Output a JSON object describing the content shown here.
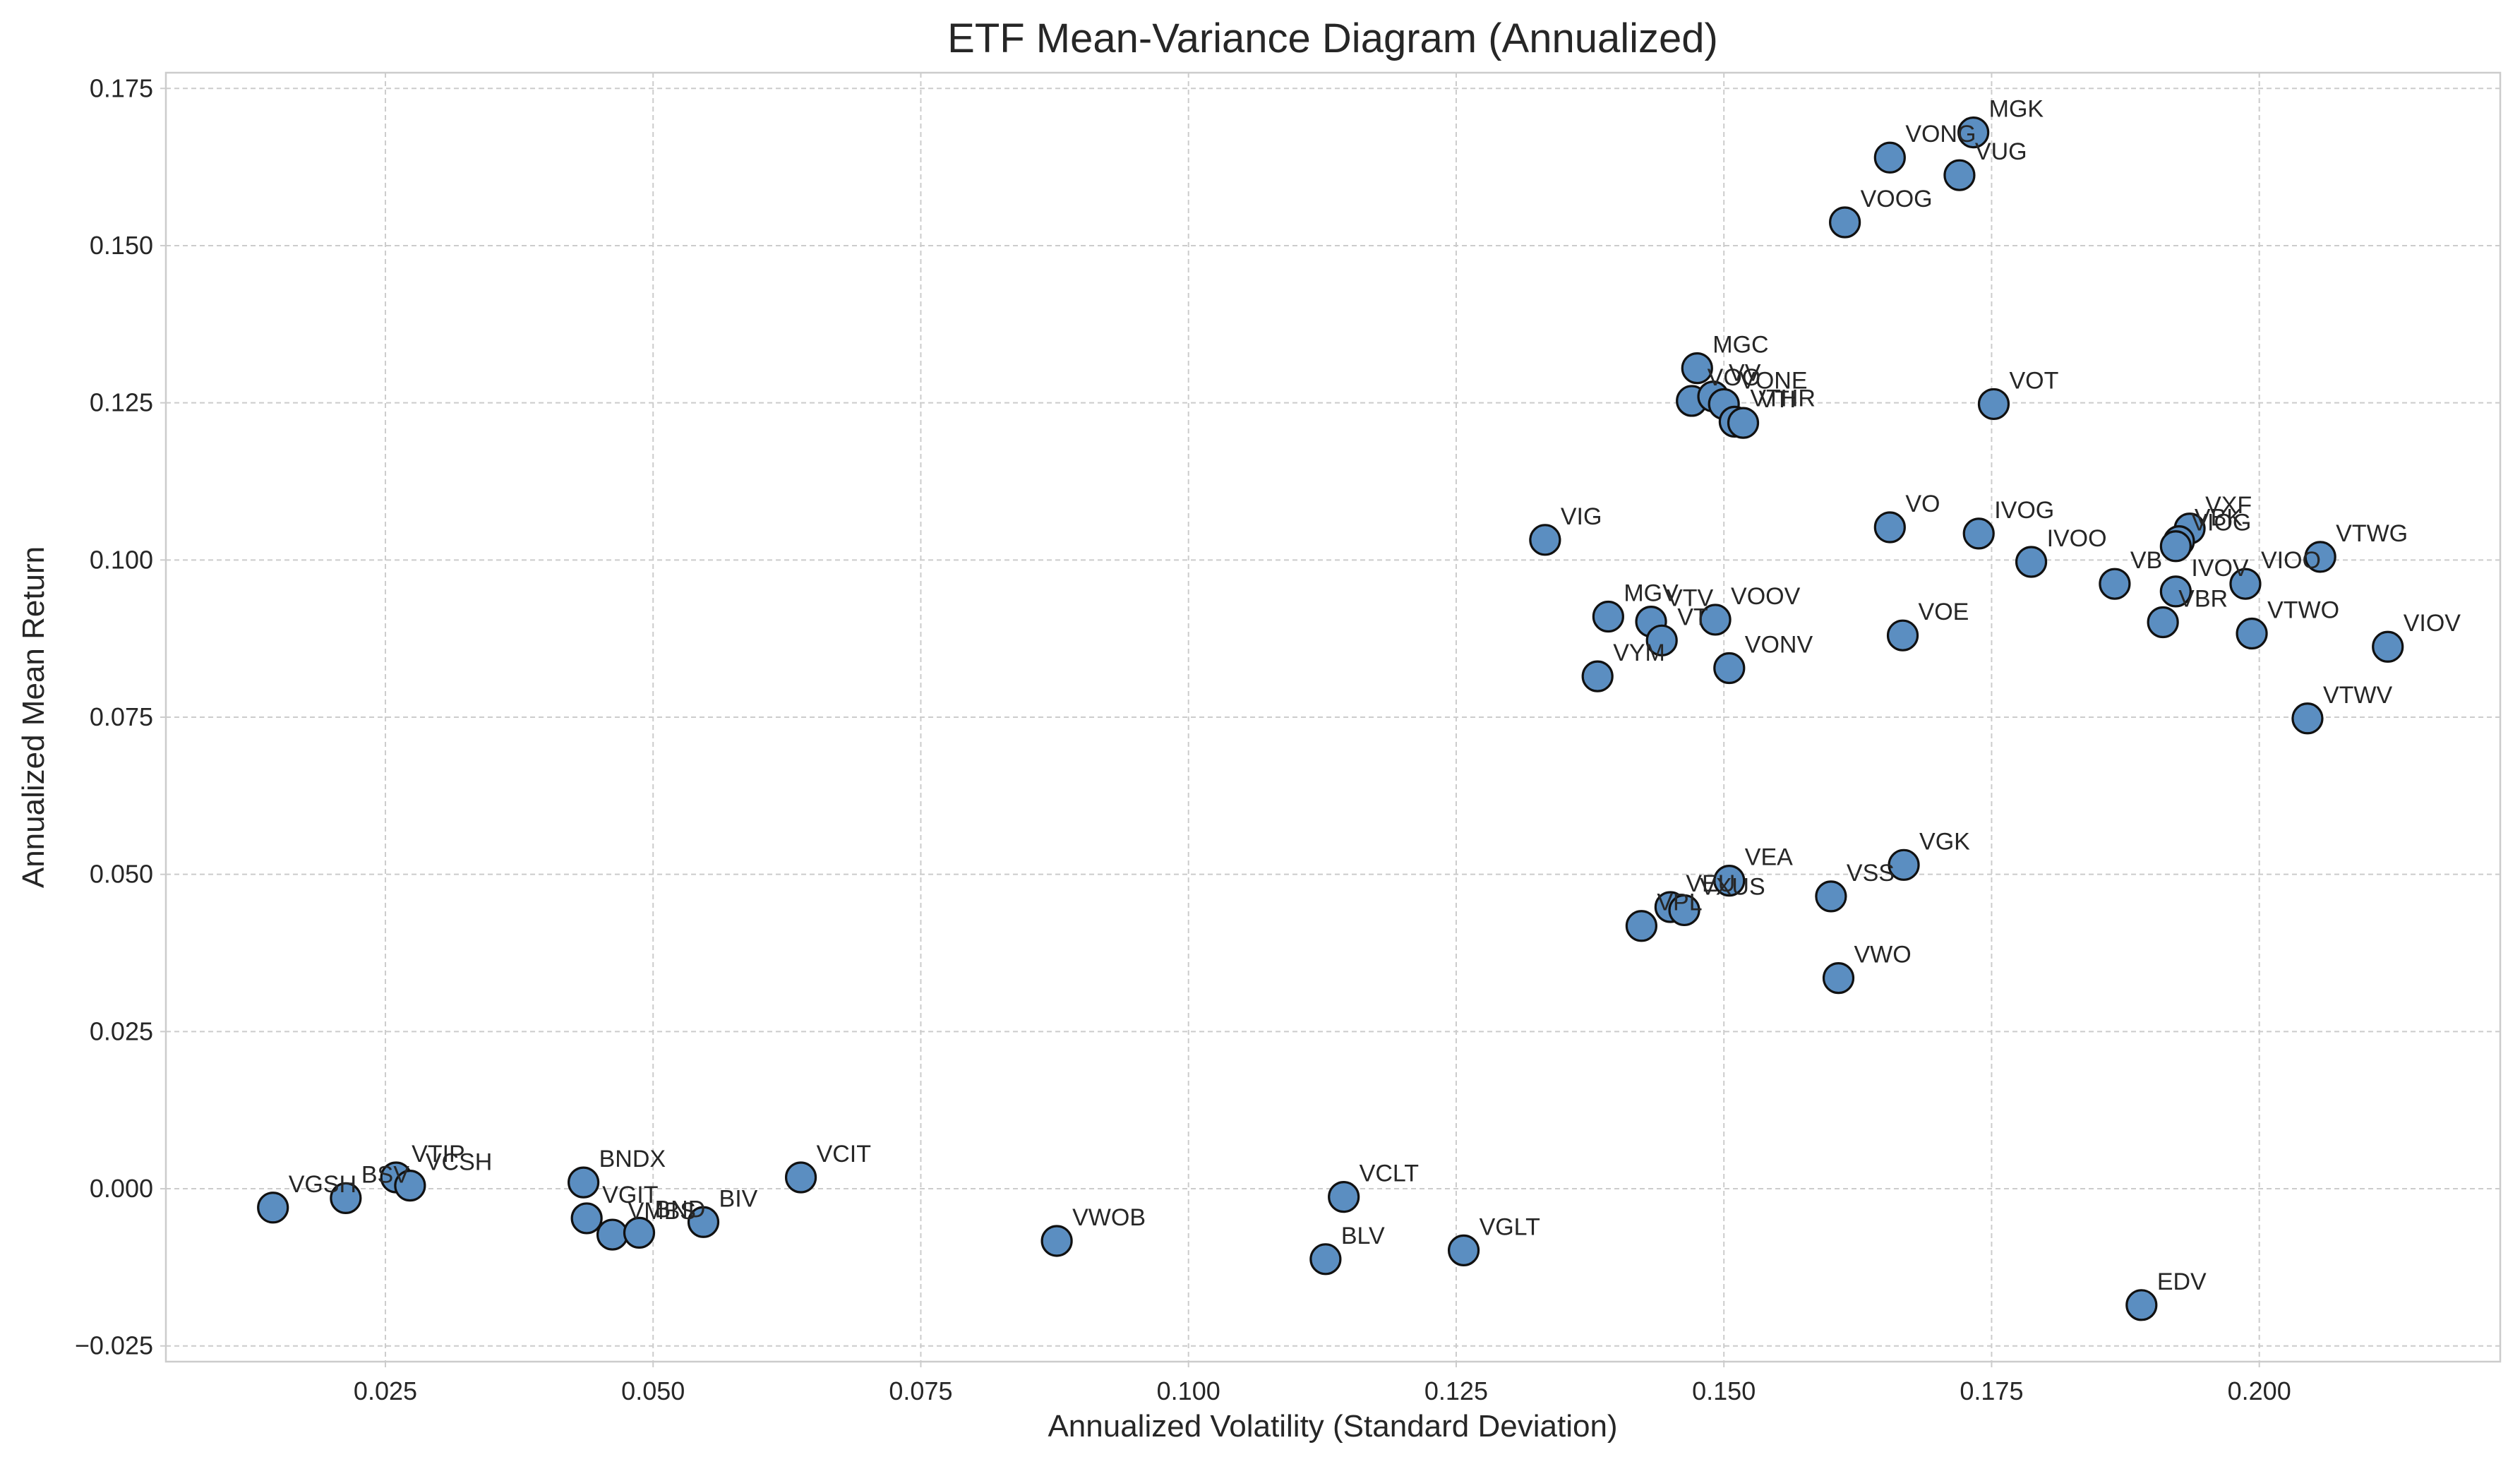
{
  "chart_data": {
    "type": "scatter",
    "title": "ETF Mean-Variance Diagram (Annualized)",
    "xlabel": "Annualized Volatility (Standard Deviation)",
    "ylabel": "Annualized Mean Return",
    "xlim": [
      0.0045,
      0.2225
    ],
    "ylim": [
      -0.0275,
      0.1775
    ],
    "xticks": [
      0.025,
      0.05,
      0.075,
      0.1,
      0.125,
      0.15,
      0.175,
      0.2
    ],
    "xtick_labels": [
      "0.025",
      "0.050",
      "0.075",
      "0.100",
      "0.125",
      "0.150",
      "0.175",
      "0.200"
    ],
    "yticks": [
      -0.025,
      0.0,
      0.025,
      0.05,
      0.075,
      0.1,
      0.125,
      0.15,
      0.175
    ],
    "ytick_labels": [
      "−0.025",
      "0.000",
      "0.025",
      "0.050",
      "0.075",
      "0.100",
      "0.125",
      "0.150",
      "0.175"
    ],
    "grid": true,
    "marker_color": "#5b8ec1",
    "points": [
      {
        "label": "MGK",
        "x": 0.1733,
        "y": 0.168
      },
      {
        "label": "VONG",
        "x": 0.1655,
        "y": 0.164
      },
      {
        "label": "VUG",
        "x": 0.172,
        "y": 0.1612
      },
      {
        "label": "VOOG",
        "x": 0.1613,
        "y": 0.1537
      },
      {
        "label": "MGC",
        "x": 0.1475,
        "y": 0.1305
      },
      {
        "label": "VOO",
        "x": 0.147,
        "y": 0.1253
      },
      {
        "label": "VV",
        "x": 0.149,
        "y": 0.126
      },
      {
        "label": "VONE",
        "x": 0.15,
        "y": 0.1248
      },
      {
        "label": "VTHR",
        "x": 0.151,
        "y": 0.122
      },
      {
        "label": "VTI",
        "x": 0.1518,
        "y": 0.1218
      },
      {
        "label": "VOT",
        "x": 0.1752,
        "y": 0.1248
      },
      {
        "label": "VIG",
        "x": 0.1333,
        "y": 0.1032
      },
      {
        "label": "VO",
        "x": 0.1655,
        "y": 0.1052
      },
      {
        "label": "IVOG",
        "x": 0.1738,
        "y": 0.1042
      },
      {
        "label": "IVOO",
        "x": 0.1787,
        "y": 0.0997
      },
      {
        "label": "VB",
        "x": 0.1865,
        "y": 0.0962
      },
      {
        "label": "VXF",
        "x": 0.1935,
        "y": 0.105
      },
      {
        "label": "VBK",
        "x": 0.1925,
        "y": 0.103
      },
      {
        "label": "VIOG",
        "x": 0.1922,
        "y": 0.1022
      },
      {
        "label": "IVOV",
        "x": 0.1922,
        "y": 0.095
      },
      {
        "label": "VBR",
        "x": 0.191,
        "y": 0.0901
      },
      {
        "label": "VIOO",
        "x": 0.1987,
        "y": 0.0962
      },
      {
        "label": "VTWG",
        "x": 0.2057,
        "y": 0.1005
      },
      {
        "label": "VTWO",
        "x": 0.1993,
        "y": 0.0883
      },
      {
        "label": "VIOV",
        "x": 0.212,
        "y": 0.0862
      },
      {
        "label": "VTWV",
        "x": 0.2045,
        "y": 0.0748
      },
      {
        "label": "MGV",
        "x": 0.1392,
        "y": 0.091
      },
      {
        "label": "VTV",
        "x": 0.1432,
        "y": 0.0902
      },
      {
        "label": "VT",
        "x": 0.1442,
        "y": 0.0872
      },
      {
        "label": "VOOV",
        "x": 0.1492,
        "y": 0.0905
      },
      {
        "label": "VYM",
        "x": 0.1382,
        "y": 0.0815
      },
      {
        "label": "VONV",
        "x": 0.1505,
        "y": 0.0828
      },
      {
        "label": "VOE",
        "x": 0.1667,
        "y": 0.088
      },
      {
        "label": "VGK",
        "x": 0.1668,
        "y": 0.0515
      },
      {
        "label": "VEA",
        "x": 0.1505,
        "y": 0.049
      },
      {
        "label": "VSS",
        "x": 0.16,
        "y": 0.0465
      },
      {
        "label": "VEU",
        "x": 0.145,
        "y": 0.0448
      },
      {
        "label": "VXUS",
        "x": 0.1463,
        "y": 0.0443
      },
      {
        "label": "VPL",
        "x": 0.1423,
        "y": 0.0418
      },
      {
        "label": "VWO",
        "x": 0.1607,
        "y": 0.0335
      },
      {
        "label": "VGSH",
        "x": 0.0145,
        "y": -0.003
      },
      {
        "label": "BSV",
        "x": 0.0213,
        "y": -0.0015
      },
      {
        "label": "VTIP",
        "x": 0.026,
        "y": 0.0018
      },
      {
        "label": "VCSH",
        "x": 0.0273,
        "y": 0.0005
      },
      {
        "label": "BNDX",
        "x": 0.0435,
        "y": 0.001
      },
      {
        "label": "VGIT",
        "x": 0.0438,
        "y": -0.0047
      },
      {
        "label": "VMBS",
        "x": 0.0462,
        "y": -0.0073
      },
      {
        "label": "BND",
        "x": 0.0487,
        "y": -0.007
      },
      {
        "label": "BIV",
        "x": 0.0547,
        "y": -0.0053
      },
      {
        "label": "VCIT",
        "x": 0.0638,
        "y": 0.0018
      },
      {
        "label": "VWOB",
        "x": 0.0877,
        "y": -0.0083
      },
      {
        "label": "VCLT",
        "x": 0.1145,
        "y": -0.0013
      },
      {
        "label": "BLV",
        "x": 0.1128,
        "y": -0.0112
      },
      {
        "label": "VGLT",
        "x": 0.1257,
        "y": -0.0098
      },
      {
        "label": "EDV",
        "x": 0.189,
        "y": -0.0185
      }
    ]
  }
}
